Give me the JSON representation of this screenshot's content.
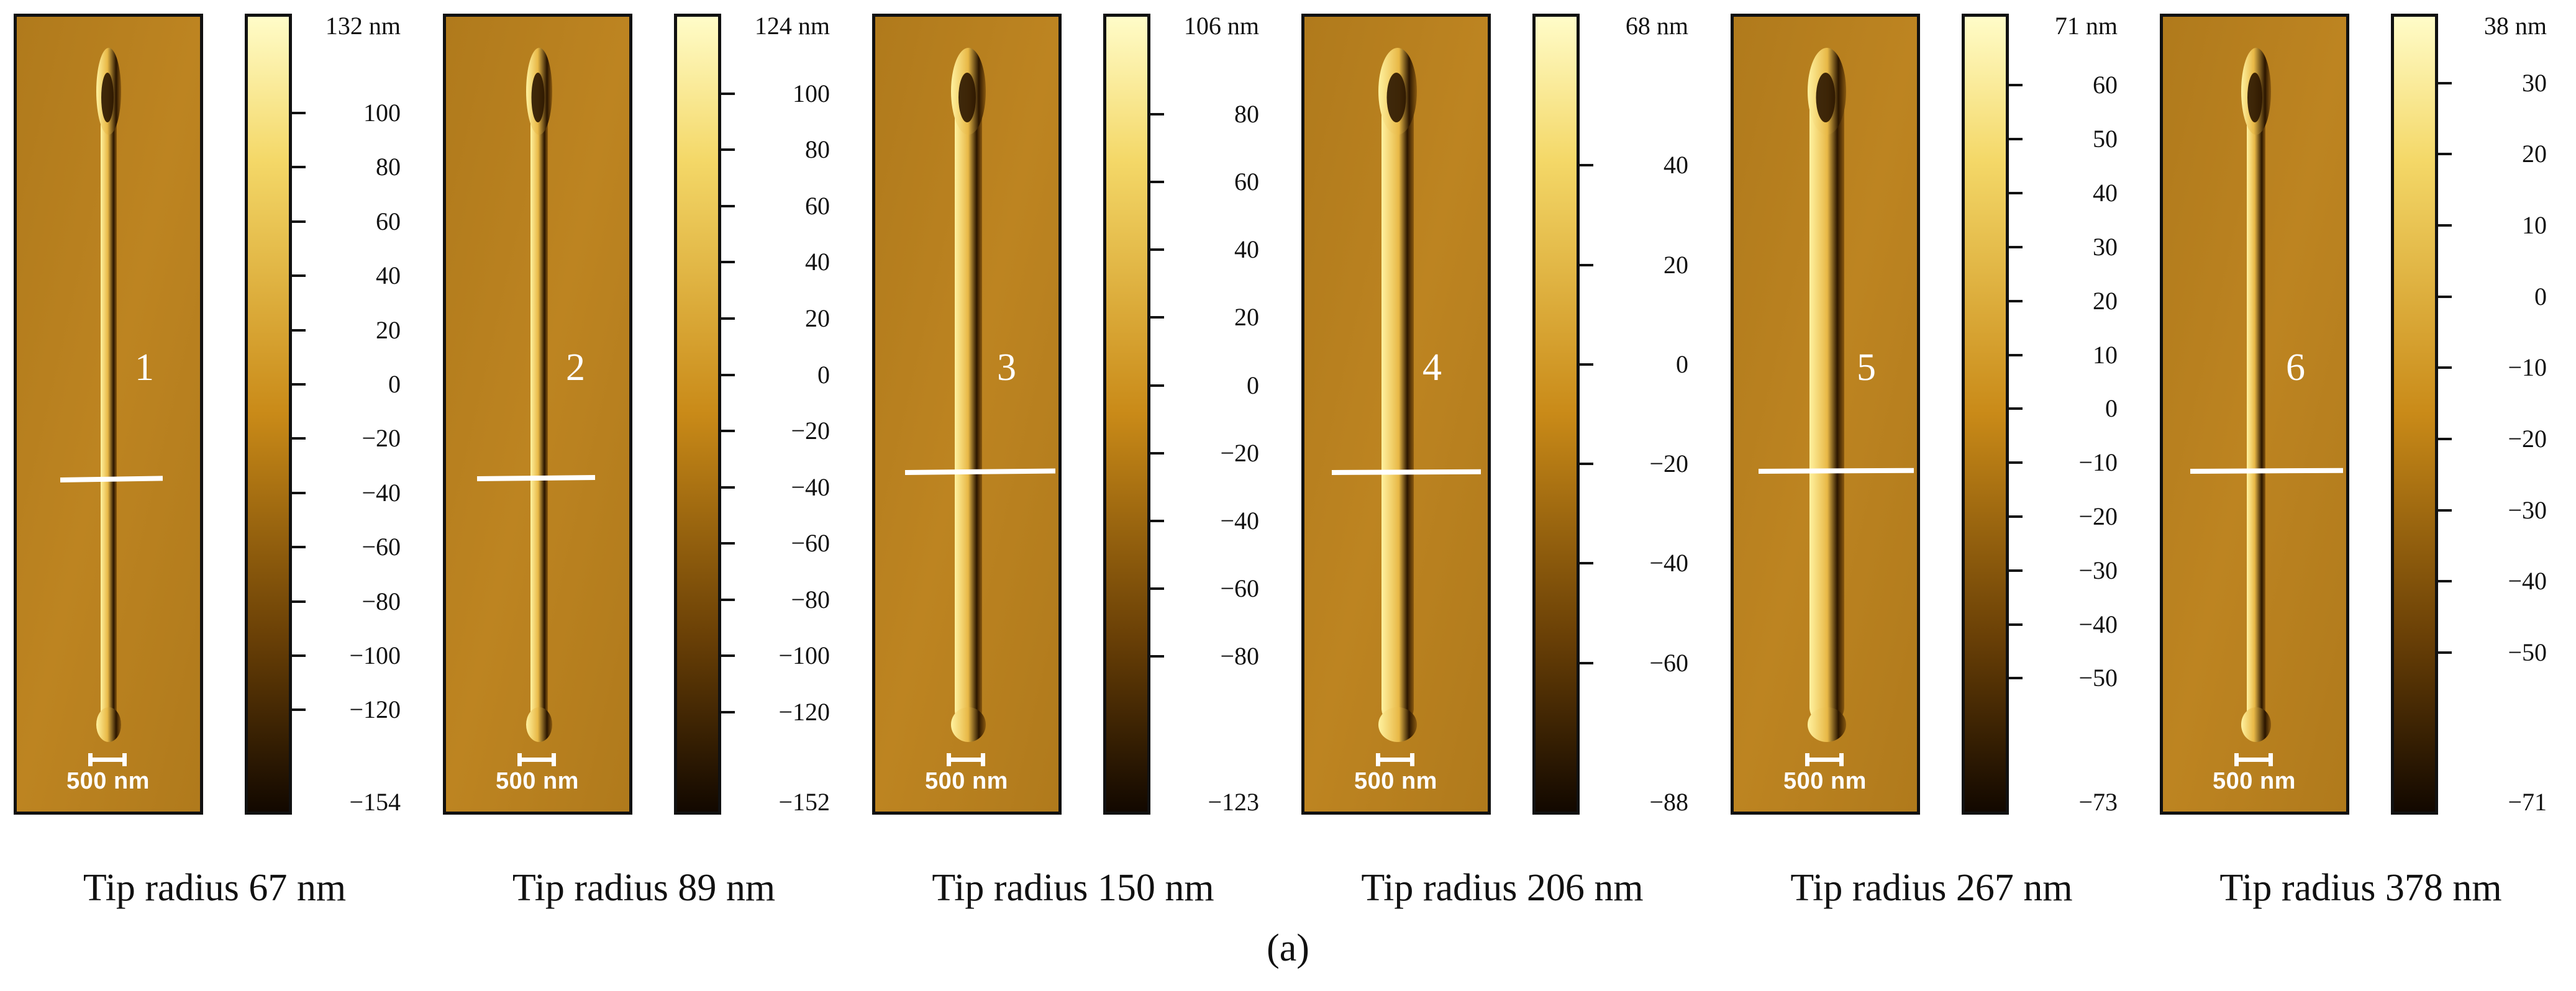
{
  "scale_bar_label": "500 nm",
  "sublabel": "(a)",
  "colors": {
    "background": "#b07a1c",
    "wire_bright": "#fff2a0",
    "wire_dark": "#2a1500",
    "colorbar_top": "#fffcc8",
    "colorbar_mid": "#c98a18",
    "colorbar_bottom": "#120800"
  },
  "panels": [
    {
      "number": "1",
      "caption": "Tip radius 67 nm",
      "colorbar_ticks": [
        "132 nm",
        "100",
        "80",
        "60",
        "40",
        "20",
        "0",
        "−20",
        "−40",
        "−60",
        "−80",
        "−100",
        "−120",
        "−154"
      ],
      "colorbar_values": [
        132,
        100,
        80,
        60,
        40,
        20,
        0,
        -20,
        -40,
        -60,
        -80,
        -100,
        -120,
        -154
      ],
      "range": [
        -154,
        132
      ]
    },
    {
      "number": "2",
      "caption": "Tip radius 89 nm",
      "colorbar_ticks": [
        "124 nm",
        "100",
        "80",
        "60",
        "40",
        "20",
        "0",
        "−20",
        "−40",
        "−60",
        "−80",
        "−100",
        "−120",
        "−152"
      ],
      "colorbar_values": [
        124,
        100,
        80,
        60,
        40,
        20,
        0,
        -20,
        -40,
        -60,
        -80,
        -100,
        -120,
        -152
      ],
      "range": [
        -152,
        124
      ]
    },
    {
      "number": "3",
      "caption": "Tip radius 150 nm",
      "colorbar_ticks": [
        "106 nm",
        "80",
        "60",
        "40",
        "20",
        "0",
        "−20",
        "−40",
        "−60",
        "−80",
        "−123"
      ],
      "colorbar_values": [
        106,
        80,
        60,
        40,
        20,
        0,
        -20,
        -40,
        -60,
        -80,
        -123
      ],
      "range": [
        -123,
        106
      ]
    },
    {
      "number": "4",
      "caption": "Tip radius 206 nm",
      "colorbar_ticks": [
        "68 nm",
        "40",
        "20",
        "0",
        "−20",
        "−40",
        "−60",
        "−88"
      ],
      "colorbar_values": [
        68,
        40,
        20,
        0,
        -20,
        -40,
        -60,
        -88
      ],
      "range": [
        -88,
        68
      ]
    },
    {
      "number": "5",
      "caption": "Tip radius 267 nm",
      "colorbar_ticks": [
        "71 nm",
        "60",
        "50",
        "40",
        "30",
        "20",
        "10",
        "0",
        "−10",
        "−20",
        "−30",
        "−40",
        "−50",
        "−73"
      ],
      "colorbar_values": [
        71,
        60,
        50,
        40,
        30,
        20,
        10,
        0,
        -10,
        -20,
        -30,
        -40,
        -50,
        -73
      ],
      "range": [
        -73,
        71
      ]
    },
    {
      "number": "6",
      "caption": "Tip radius 378 nm",
      "colorbar_ticks": [
        "38 nm",
        "30",
        "20",
        "10",
        "0",
        "−10",
        "−20",
        "−30",
        "−40",
        "−50",
        "−71"
      ],
      "colorbar_values": [
        38,
        30,
        20,
        10,
        0,
        -10,
        -20,
        -30,
        -40,
        -50,
        -71
      ],
      "range": [
        -71,
        38
      ]
    }
  ]
}
